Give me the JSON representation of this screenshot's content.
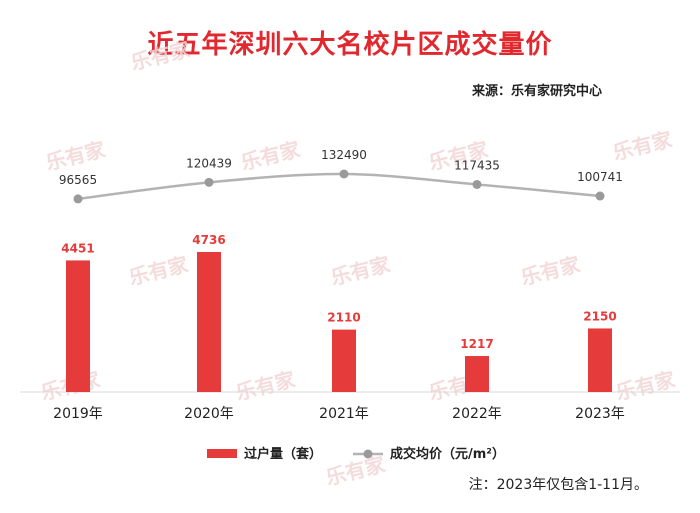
{
  "title": "近五年深圳六大名校片区成交量价",
  "source": "来源：乐有家研究中心",
  "note": "注：2023年仅包含1-11月。",
  "watermark": "乐有家",
  "colors": {
    "bar": "#e53b3b",
    "line": "#b3b3b3",
    "marker": "#9a9a9a",
    "title": "#e0282e"
  },
  "chart_data": {
    "type": "bar",
    "categories": [
      "2019年",
      "2020年",
      "2021年",
      "2022年",
      "2023年"
    ],
    "series": [
      {
        "name": "过户量（套）",
        "type": "bar",
        "values": [
          4451,
          4736,
          2110,
          1217,
          2150
        ]
      },
      {
        "name": "成交均价（元/m²）",
        "type": "line",
        "values": [
          96565,
          120439,
          132490,
          117435,
          100741
        ]
      }
    ],
    "legend_position": "bottom",
    "grid": false
  }
}
